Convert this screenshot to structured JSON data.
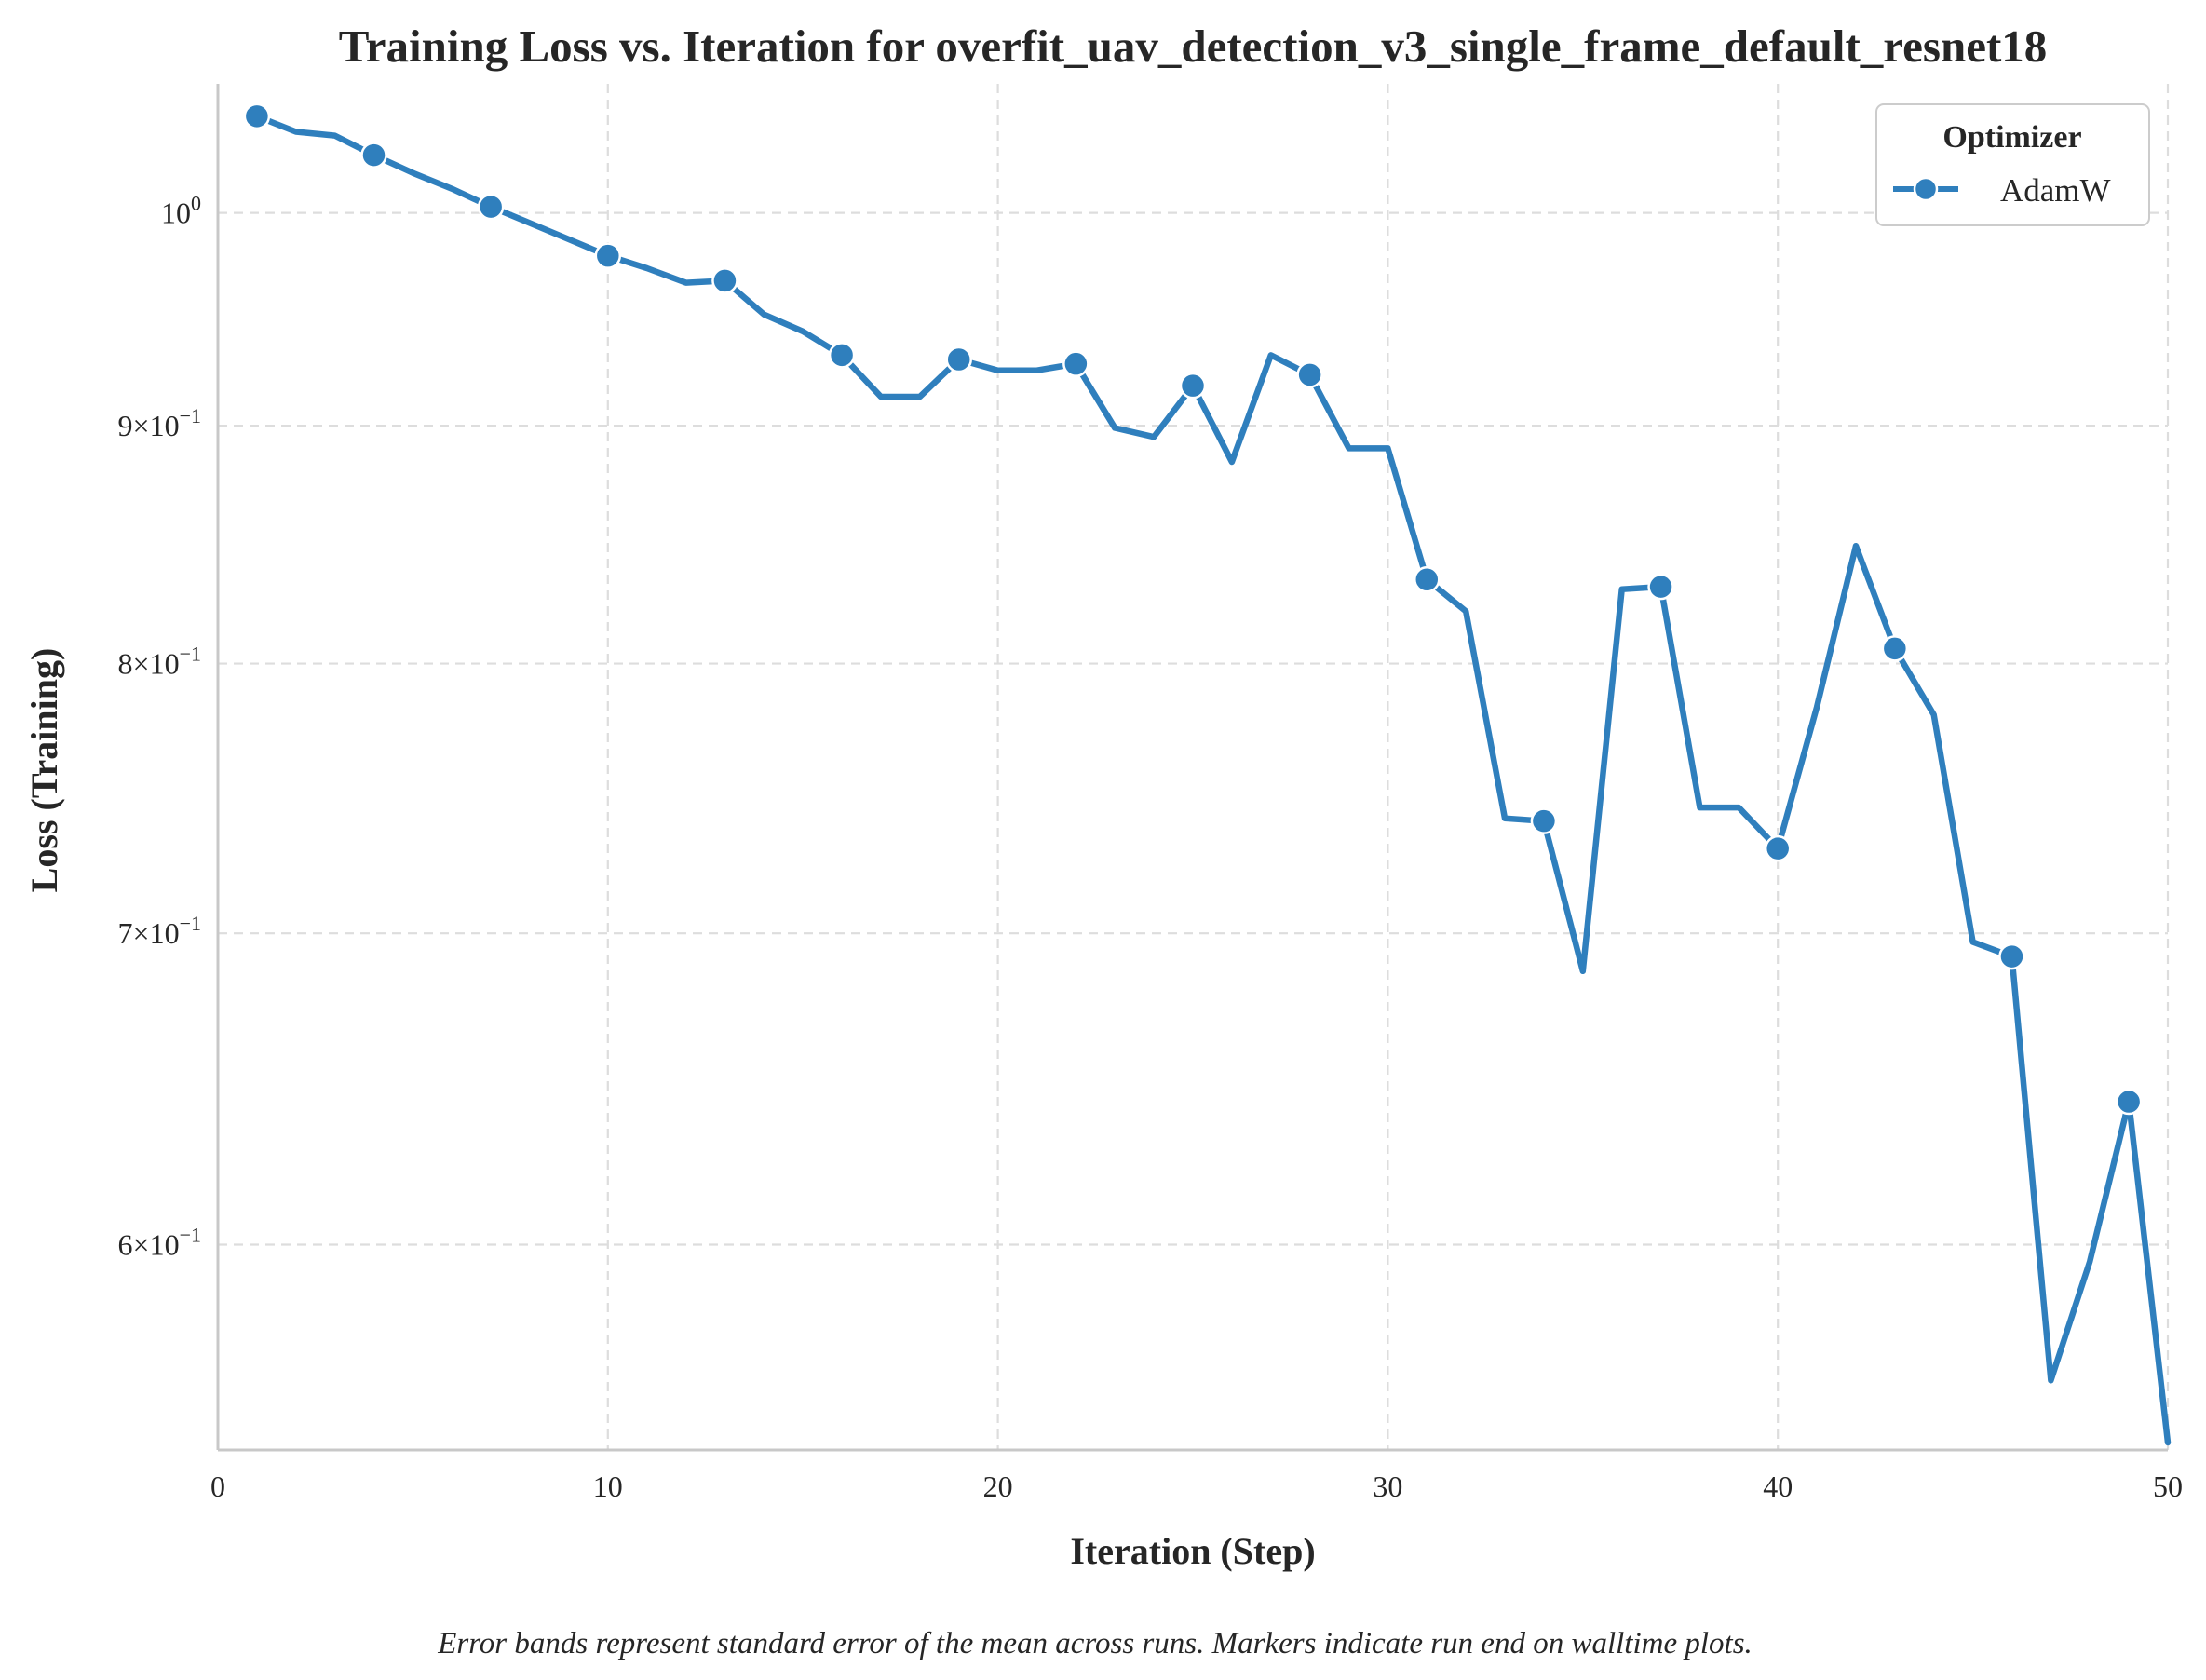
{
  "chart_data": {
    "type": "line",
    "title": "Training Loss vs. Iteration for overfit_uav_detection_v3_single_frame_default_resnet18",
    "xlabel": "Iteration (Step)",
    "ylabel": "Loss (Training)",
    "xlim": [
      0,
      50
    ],
    "ylim": [
      0.542,
      1.066
    ],
    "yscale": "log",
    "x_ticks": [
      {
        "value": 0,
        "label": "0"
      },
      {
        "value": 10,
        "label": "10"
      },
      {
        "value": 20,
        "label": "20"
      },
      {
        "value": 30,
        "label": "30"
      },
      {
        "value": 40,
        "label": "40"
      },
      {
        "value": 50,
        "label": "50"
      }
    ],
    "y_ticks": [
      {
        "value": 1.0,
        "base": "10",
        "exp": "0"
      },
      {
        "value": 0.9,
        "base": "9×10",
        "exp": "−1"
      },
      {
        "value": 0.8,
        "base": "8×10",
        "exp": "−1"
      },
      {
        "value": 0.7,
        "base": "7×10",
        "exp": "−1"
      },
      {
        "value": 0.6,
        "base": "6×10",
        "exp": "−1"
      }
    ],
    "grid": true,
    "legend": {
      "title": "Optimizer",
      "position": "top-right"
    },
    "series": [
      {
        "name": "AdamW",
        "color": "#2f7fbd",
        "x": [
          1,
          2,
          3,
          4,
          5,
          6,
          7,
          8,
          9,
          10,
          11,
          12,
          13,
          14,
          15,
          16,
          17,
          18,
          19,
          20,
          21,
          22,
          23,
          24,
          25,
          26,
          27,
          28,
          29,
          30,
          31,
          32,
          33,
          34,
          35,
          36,
          37,
          38,
          39,
          40,
          41,
          42,
          43,
          44,
          45,
          46,
          47,
          48,
          49,
          50
        ],
        "y": [
          1.049,
          1.041,
          1.039,
          1.029,
          1.02,
          1.012,
          1.003,
          0.995,
          0.987,
          0.979,
          0.973,
          0.966,
          0.967,
          0.951,
          0.943,
          0.932,
          0.913,
          0.913,
          0.93,
          0.925,
          0.925,
          0.928,
          0.899,
          0.895,
          0.918,
          0.884,
          0.932,
          0.923,
          0.89,
          0.89,
          0.834,
          0.821,
          0.741,
          0.74,
          0.687,
          0.83,
          0.831,
          0.745,
          0.745,
          0.73,
          0.783,
          0.848,
          0.806,
          0.78,
          0.697,
          0.692,
          0.561,
          0.595,
          0.644,
          0.544
        ],
        "marker_x": [
          1,
          4,
          7,
          10,
          13,
          16,
          19,
          22,
          25,
          28,
          31,
          34,
          37,
          40,
          43,
          46,
          49
        ]
      }
    ]
  },
  "caption": "Error bands represent standard error of the mean across runs. Markers indicate run end on walltime plots."
}
